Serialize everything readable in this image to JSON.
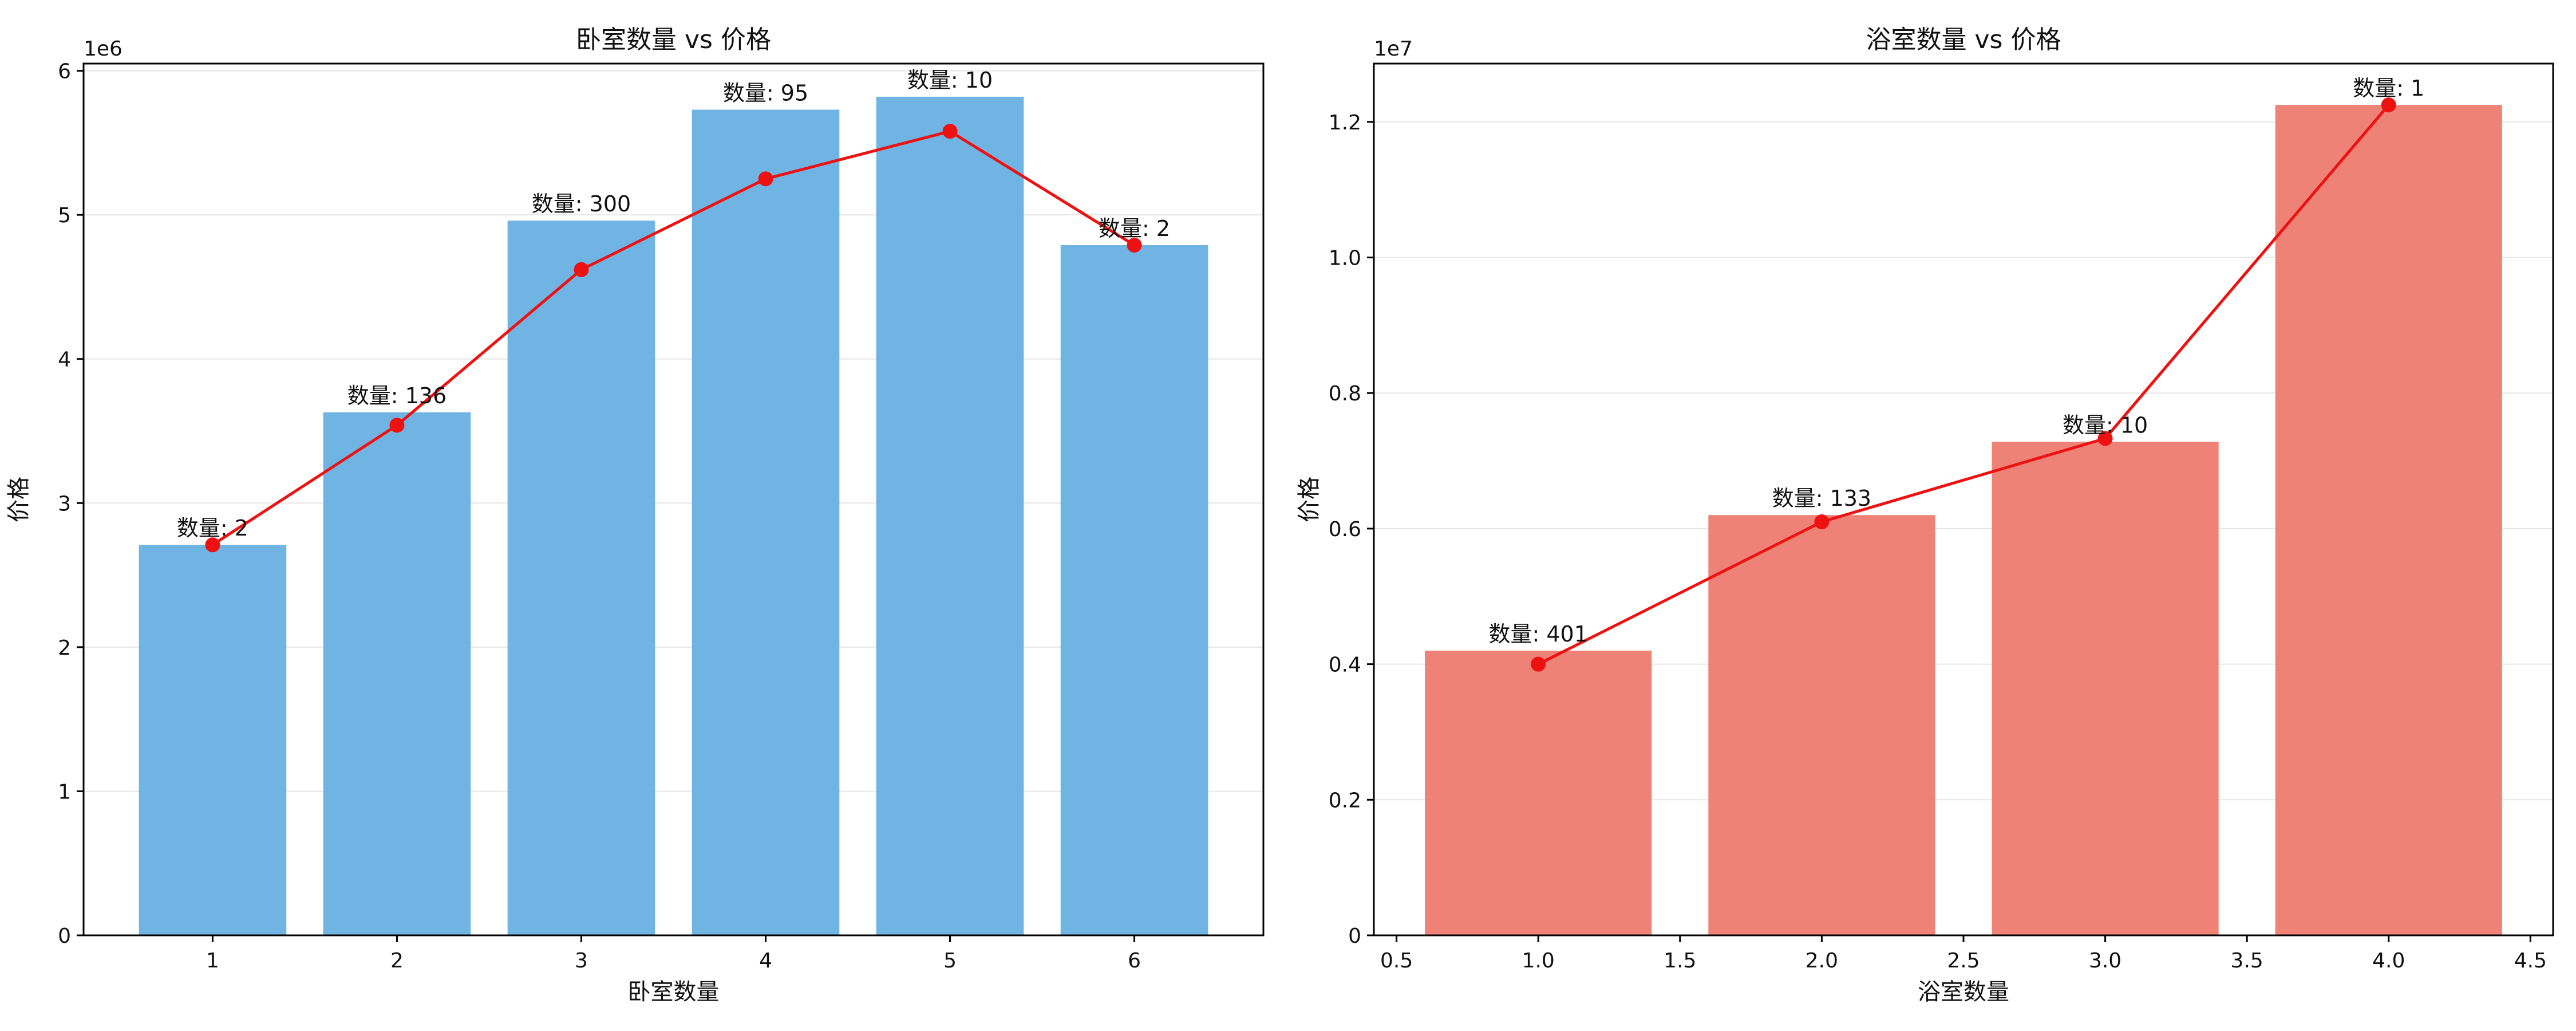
{
  "chart_data": [
    {
      "type": "bar",
      "title": "卧室数量 vs 价格",
      "xlabel": "卧室数量",
      "ylabel": "价格",
      "y_multiplier": "1e6",
      "y_scale": 1000000,
      "x": [
        1,
        2,
        3,
        4,
        5,
        6
      ],
      "xlim": [
        0.3,
        6.7
      ],
      "ylim": [
        0,
        6.05
      ],
      "xticks": [
        1,
        2,
        3,
        4,
        5,
        6
      ],
      "xtick_labels": [
        "1",
        "2",
        "3",
        "4",
        "5",
        "6"
      ],
      "yticks": [
        0,
        1,
        2,
        3,
        4,
        5,
        6
      ],
      "ytick_labels": [
        "0",
        "1",
        "2",
        "3",
        "4",
        "5",
        "6"
      ],
      "bar_width": 0.8,
      "grid": true,
      "bar_color": "#6fb4e3",
      "line_color": "#ee1111",
      "series": [
        {
          "kind": "bar",
          "values": [
            2.71,
            3.63,
            4.96,
            5.73,
            5.82,
            4.79
          ]
        },
        {
          "kind": "line",
          "values": [
            2.71,
            3.54,
            4.62,
            5.25,
            5.58,
            4.79
          ]
        }
      ],
      "data_labels": [
        "数量: 2",
        "数量: 136",
        "数量: 300",
        "数量: 95",
        "数量: 10",
        "数量: 2"
      ]
    },
    {
      "type": "bar",
      "title": "浴室数量 vs 价格",
      "xlabel": "浴室数量",
      "ylabel": "价格",
      "y_multiplier": "1e7",
      "y_scale": 10000000,
      "x": [
        1.0,
        2.0,
        3.0,
        4.0
      ],
      "xlim": [
        0.42,
        4.58
      ],
      "ylim": [
        0,
        1.286
      ],
      "xticks": [
        0.5,
        1.0,
        1.5,
        2.0,
        2.5,
        3.0,
        3.5,
        4.0,
        4.5
      ],
      "xtick_labels": [
        "0.5",
        "1.0",
        "1.5",
        "2.0",
        "2.5",
        "3.0",
        "3.5",
        "4.0",
        "4.5"
      ],
      "yticks": [
        0,
        0.2,
        0.4,
        0.6,
        0.8,
        1.0,
        1.2
      ],
      "ytick_labels": [
        "0",
        "0.2",
        "0.4",
        "0.6",
        "0.8",
        "1.0",
        "1.2"
      ],
      "bar_width": 0.8,
      "grid": true,
      "bar_color": "#ee8277",
      "line_color": "#ee1111",
      "series": [
        {
          "kind": "bar",
          "values": [
            0.42,
            0.62,
            0.728,
            1.225
          ]
        },
        {
          "kind": "line",
          "values": [
            0.4,
            0.61,
            0.733,
            1.225
          ]
        }
      ],
      "data_labels": [
        "数量: 401",
        "数量: 133",
        "数量: 10",
        "数量: 1"
      ]
    }
  ]
}
